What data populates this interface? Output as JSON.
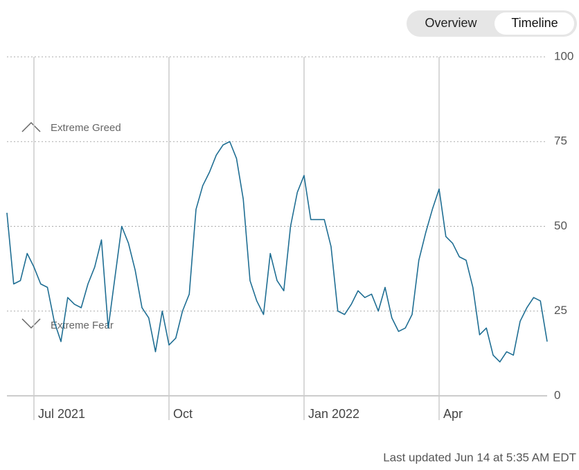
{
  "toggle": {
    "options": [
      "Overview",
      "Timeline"
    ]
  },
  "chart_data": {
    "type": "line",
    "categories": [
      null,
      null,
      null,
      null,
      "Jul 2021",
      null,
      null,
      null,
      null,
      null,
      null,
      null,
      null,
      null,
      null,
      null,
      null,
      null,
      null,
      null,
      null,
      null,
      null,
      null,
      "Oct",
      null,
      null,
      null,
      null,
      null,
      null,
      null,
      null,
      null,
      null,
      null,
      null,
      null,
      null,
      null,
      null,
      null,
      null,
      null,
      "Jan 2022",
      null,
      null,
      null,
      null,
      null,
      null,
      null,
      null,
      null,
      null,
      null,
      null,
      null,
      null,
      null,
      null,
      null,
      null,
      null,
      "Apr",
      null,
      null,
      null,
      null,
      null,
      null,
      null,
      null,
      null,
      null,
      null,
      null,
      null,
      null,
      null,
      null
    ],
    "values": [
      54,
      33,
      34,
      42,
      38,
      33,
      32,
      22,
      16,
      29,
      27,
      26,
      33,
      38,
      46,
      20,
      35,
      50,
      45,
      37,
      26,
      23,
      13,
      25,
      15,
      17,
      25,
      30,
      55,
      62,
      66,
      71,
      74,
      75,
      70,
      58,
      34,
      28,
      24,
      42,
      34,
      31,
      50,
      60,
      65,
      52,
      52,
      52,
      44,
      25,
      24,
      27,
      31,
      29,
      30,
      25,
      32,
      23,
      19,
      20,
      24,
      40,
      48,
      55,
      61,
      47,
      45,
      41,
      40,
      32,
      18,
      20,
      12,
      10,
      13,
      12,
      22,
      26,
      29,
      28,
      16
    ],
    "color": "#1f6e93",
    "ylim": [
      0,
      100
    ],
    "yticks": [
      0,
      25,
      50,
      75,
      100
    ],
    "grid": true,
    "annotations": [
      "Extreme Greed",
      "Extreme Fear"
    ]
  },
  "footer": "Last updated Jun 14 at 5:35 AM EDT"
}
